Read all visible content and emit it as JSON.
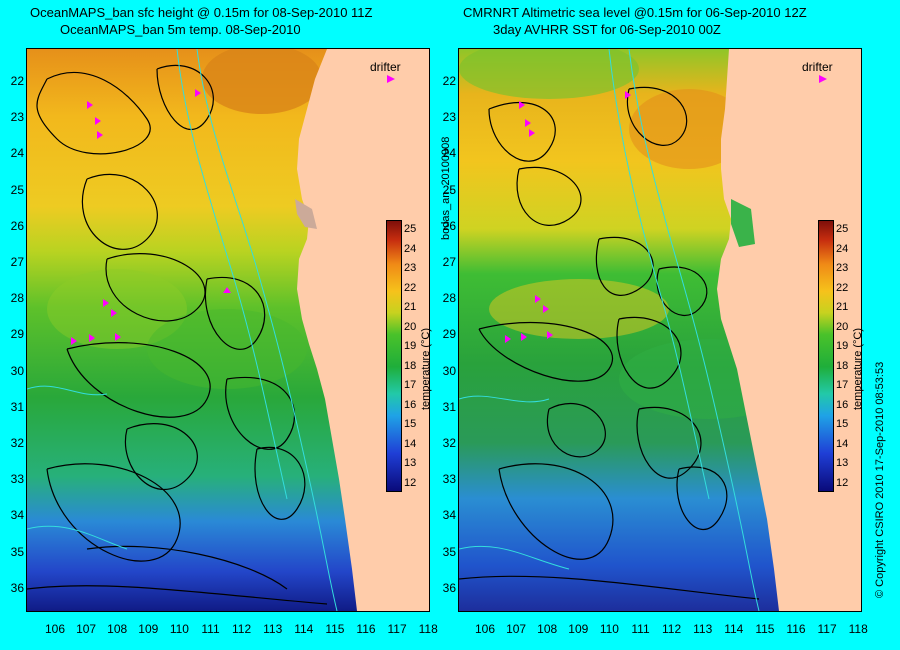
{
  "left_panel": {
    "title_line1": "OceanMAPS_ban sfc height @ 0.15m for 08-Sep-2010 11Z",
    "title_line2": "OceanMAPS_ban 5m temp. 08-Sep-2010"
  },
  "right_panel": {
    "title_line1": "CMRNRT Altimetric sea level  @0.15m  for 06-Sep-2010 12Z",
    "title_line2": "3day AVHRR SST for 06-Sep-2010 00Z"
  },
  "drifter_label": "drifter",
  "colorbar": {
    "label": "temperature (°C)",
    "ticks": [
      "25",
      "24",
      "23",
      "22",
      "21",
      "20",
      "19",
      "18",
      "17",
      "16",
      "15",
      "14",
      "13",
      "12"
    ]
  },
  "lat_ticks": [
    "22",
    "23",
    "24",
    "25",
    "26",
    "27",
    "28",
    "29",
    "30",
    "31",
    "32",
    "33",
    "34",
    "35",
    "36"
  ],
  "lon_ticks": [
    "106",
    "107",
    "108",
    "109",
    "110",
    "111",
    "112",
    "113",
    "114",
    "115",
    "116",
    "117",
    "118"
  ],
  "side_label": "bodas_an_20100908",
  "copyright": "© Copyright CSIRO 2010   17-Sep-2010 08:53:53",
  "colors": {
    "background": "#00ffff",
    "land": "#ffccaa",
    "drifter": "#ff00ff"
  }
}
